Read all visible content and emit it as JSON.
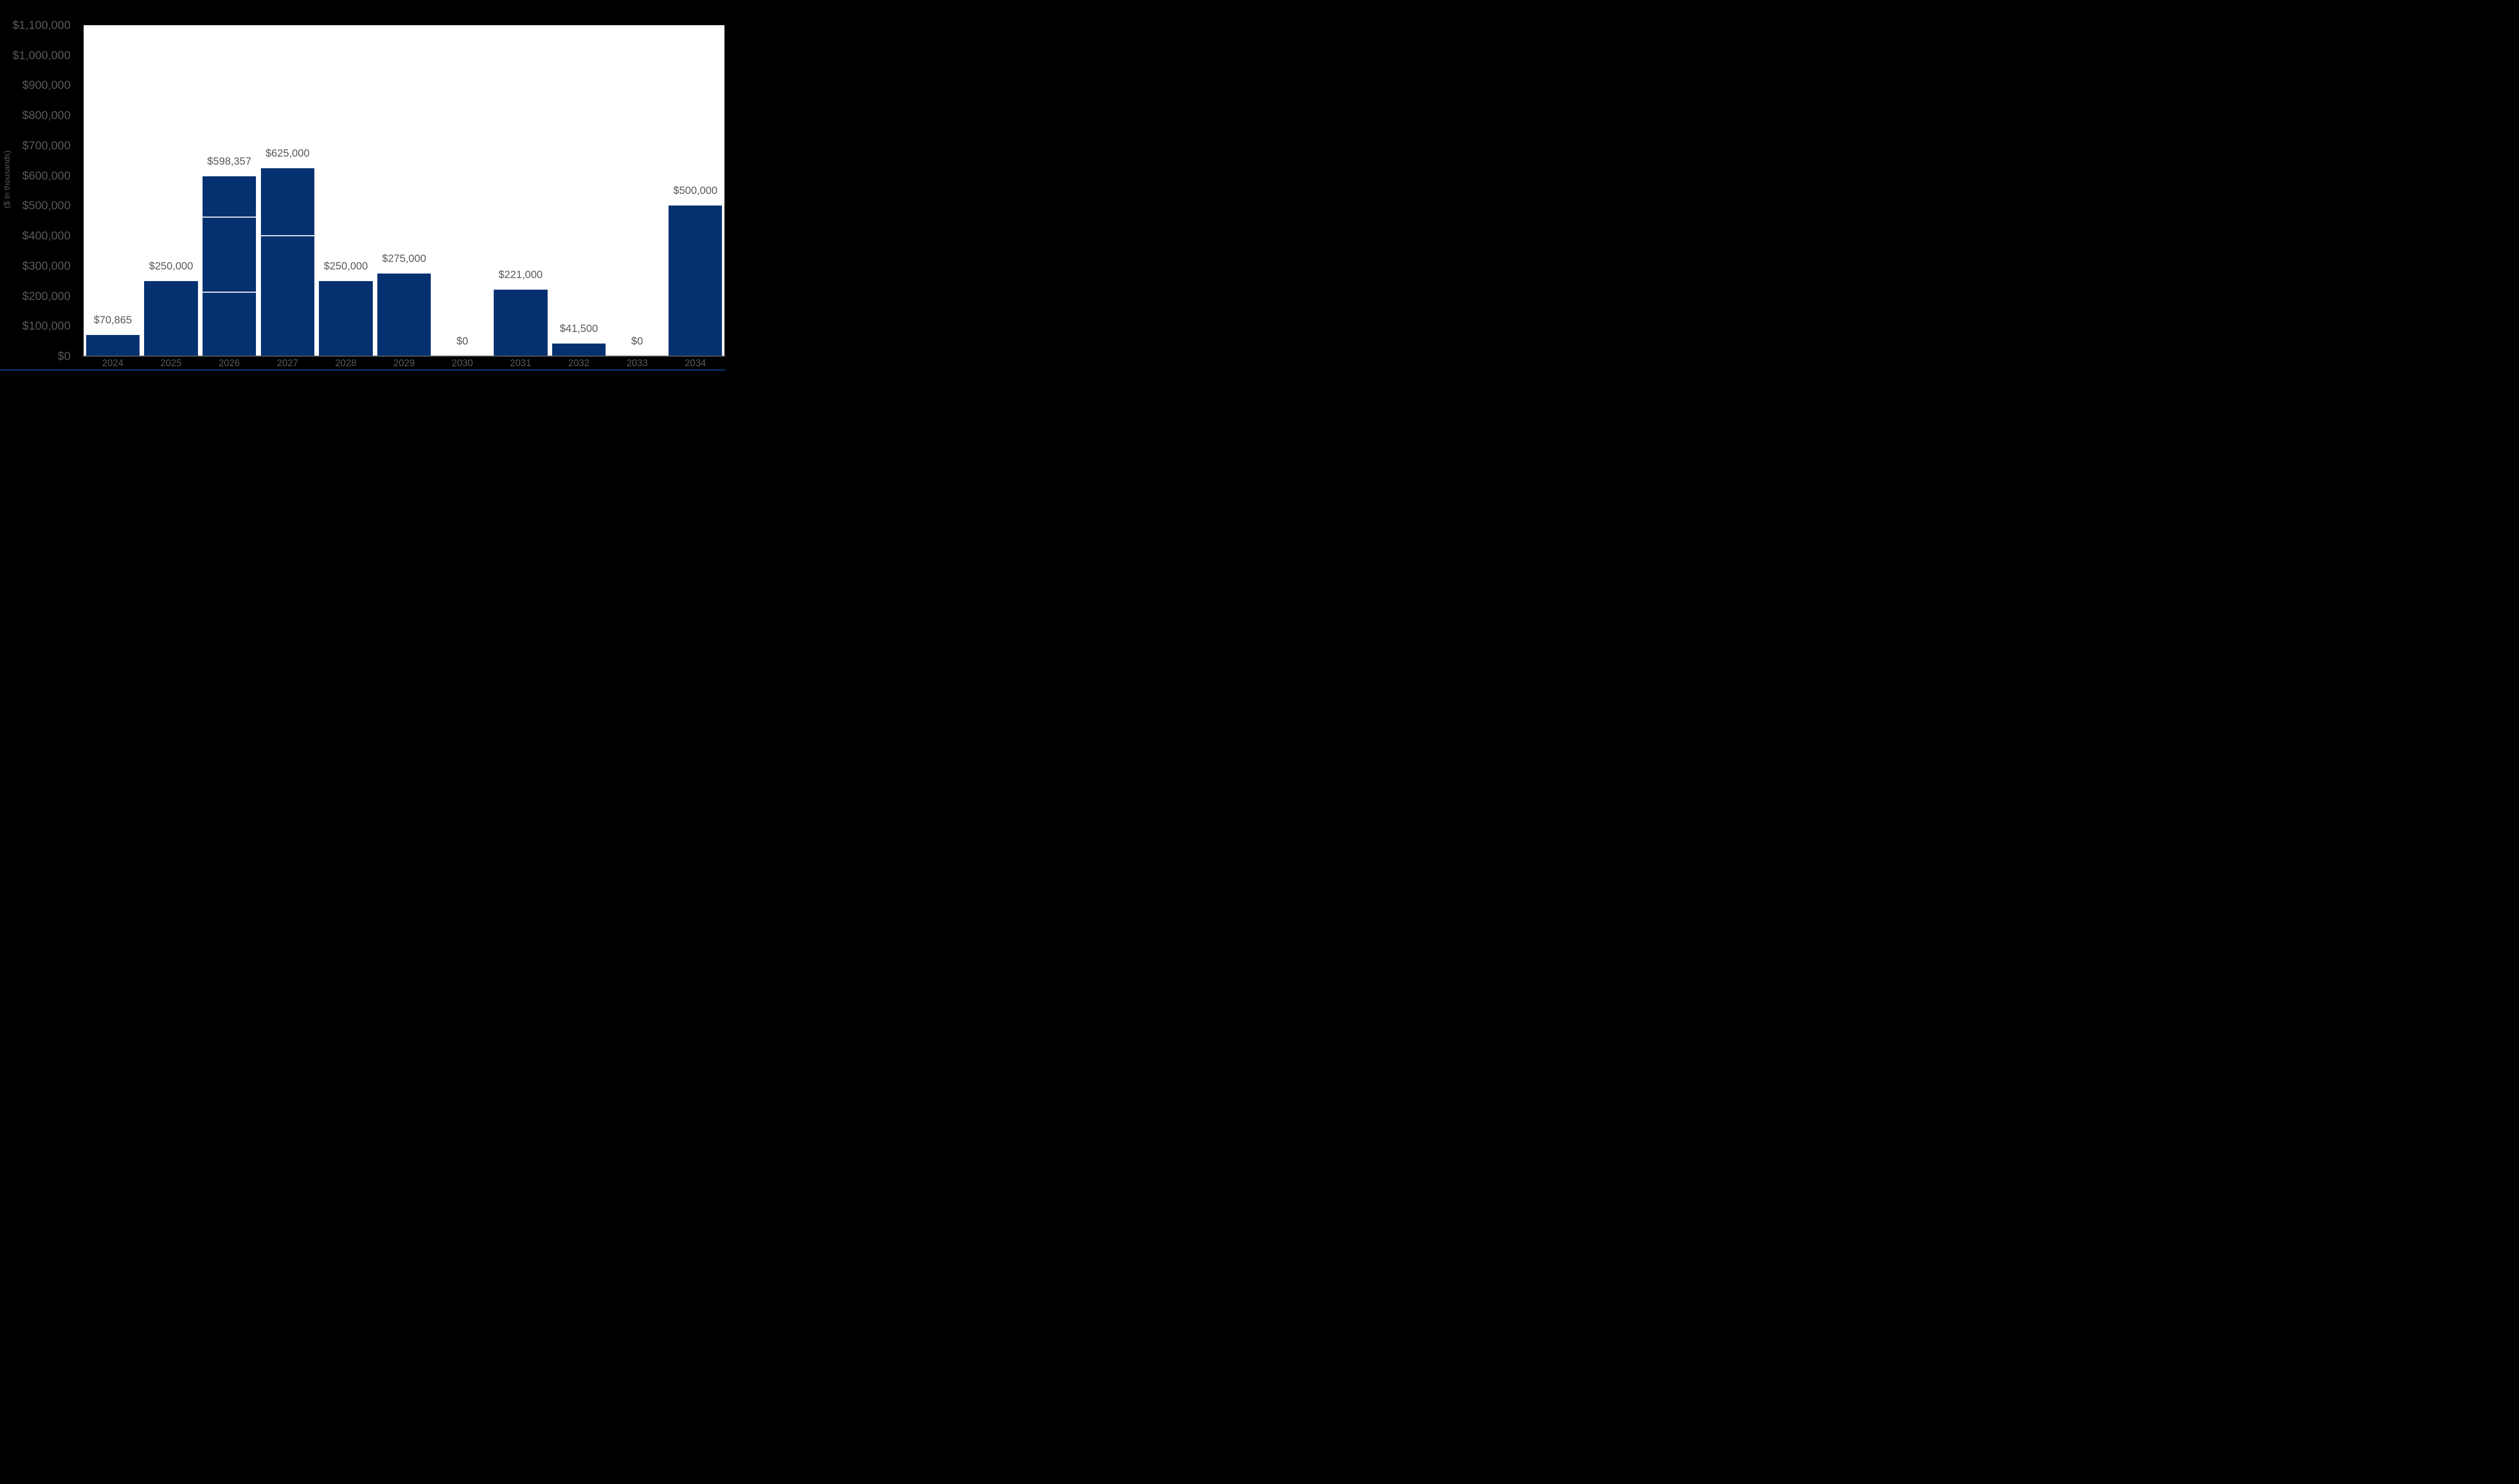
{
  "chart_data": {
    "type": "bar",
    "stacked": true,
    "title": "",
    "xlabel": "",
    "ylabel": "($ in thousands)",
    "ylim": [
      0,
      1100000
    ],
    "grid": false,
    "legend": false,
    "colors": {
      "background": "#000000",
      "plot_background": "#FFFFFF",
      "bar": "#053170",
      "label": "#595959",
      "axis_line": "#595959"
    },
    "yticks": [
      {
        "value": 0,
        "label": "$0"
      },
      {
        "value": 100000,
        "label": "$100,000"
      },
      {
        "value": 200000,
        "label": "$200,000"
      },
      {
        "value": 300000,
        "label": "$300,000"
      },
      {
        "value": 400000,
        "label": "$400,000"
      },
      {
        "value": 500000,
        "label": "$500,000"
      },
      {
        "value": 600000,
        "label": "$600,000"
      },
      {
        "value": 700000,
        "label": "$700,000"
      },
      {
        "value": 800000,
        "label": "$800,000"
      },
      {
        "value": 900000,
        "label": "$900,000"
      },
      {
        "value": 1000000,
        "label": "$1,000,000"
      },
      {
        "value": 1100000,
        "label": "$1,100,000"
      }
    ],
    "bars": [
      {
        "year": "2024",
        "total": 70865,
        "label": "$70,865",
        "segments": [
          70865
        ]
      },
      {
        "year": "2025",
        "total": 250000,
        "label": "$250,000",
        "segments": [
          250000
        ]
      },
      {
        "year": "2026",
        "total": 598357,
        "label": "$598,357",
        "segments": [
          214000,
          249000,
          135357
        ]
      },
      {
        "year": "2027",
        "total": 625000,
        "label": "$625,000",
        "segments": [
          400000,
          225000
        ]
      },
      {
        "year": "2028",
        "total": 250000,
        "label": "$250,000",
        "segments": [
          250000
        ]
      },
      {
        "year": "2029",
        "total": 275000,
        "label": "$275,000",
        "segments": [
          275000
        ]
      },
      {
        "year": "2030",
        "total": 0,
        "label": "$0",
        "segments": []
      },
      {
        "year": "2031",
        "total": 221000,
        "label": "$221,000",
        "segments": [
          221000
        ]
      },
      {
        "year": "2032",
        "total": 41500,
        "label": "$41,500",
        "segments": [
          41500
        ]
      },
      {
        "year": "2033",
        "total": 0,
        "label": "$0",
        "segments": []
      },
      {
        "year": "2034",
        "total": 500000,
        "label": "$500,000",
        "segments": [
          500000
        ]
      }
    ]
  }
}
